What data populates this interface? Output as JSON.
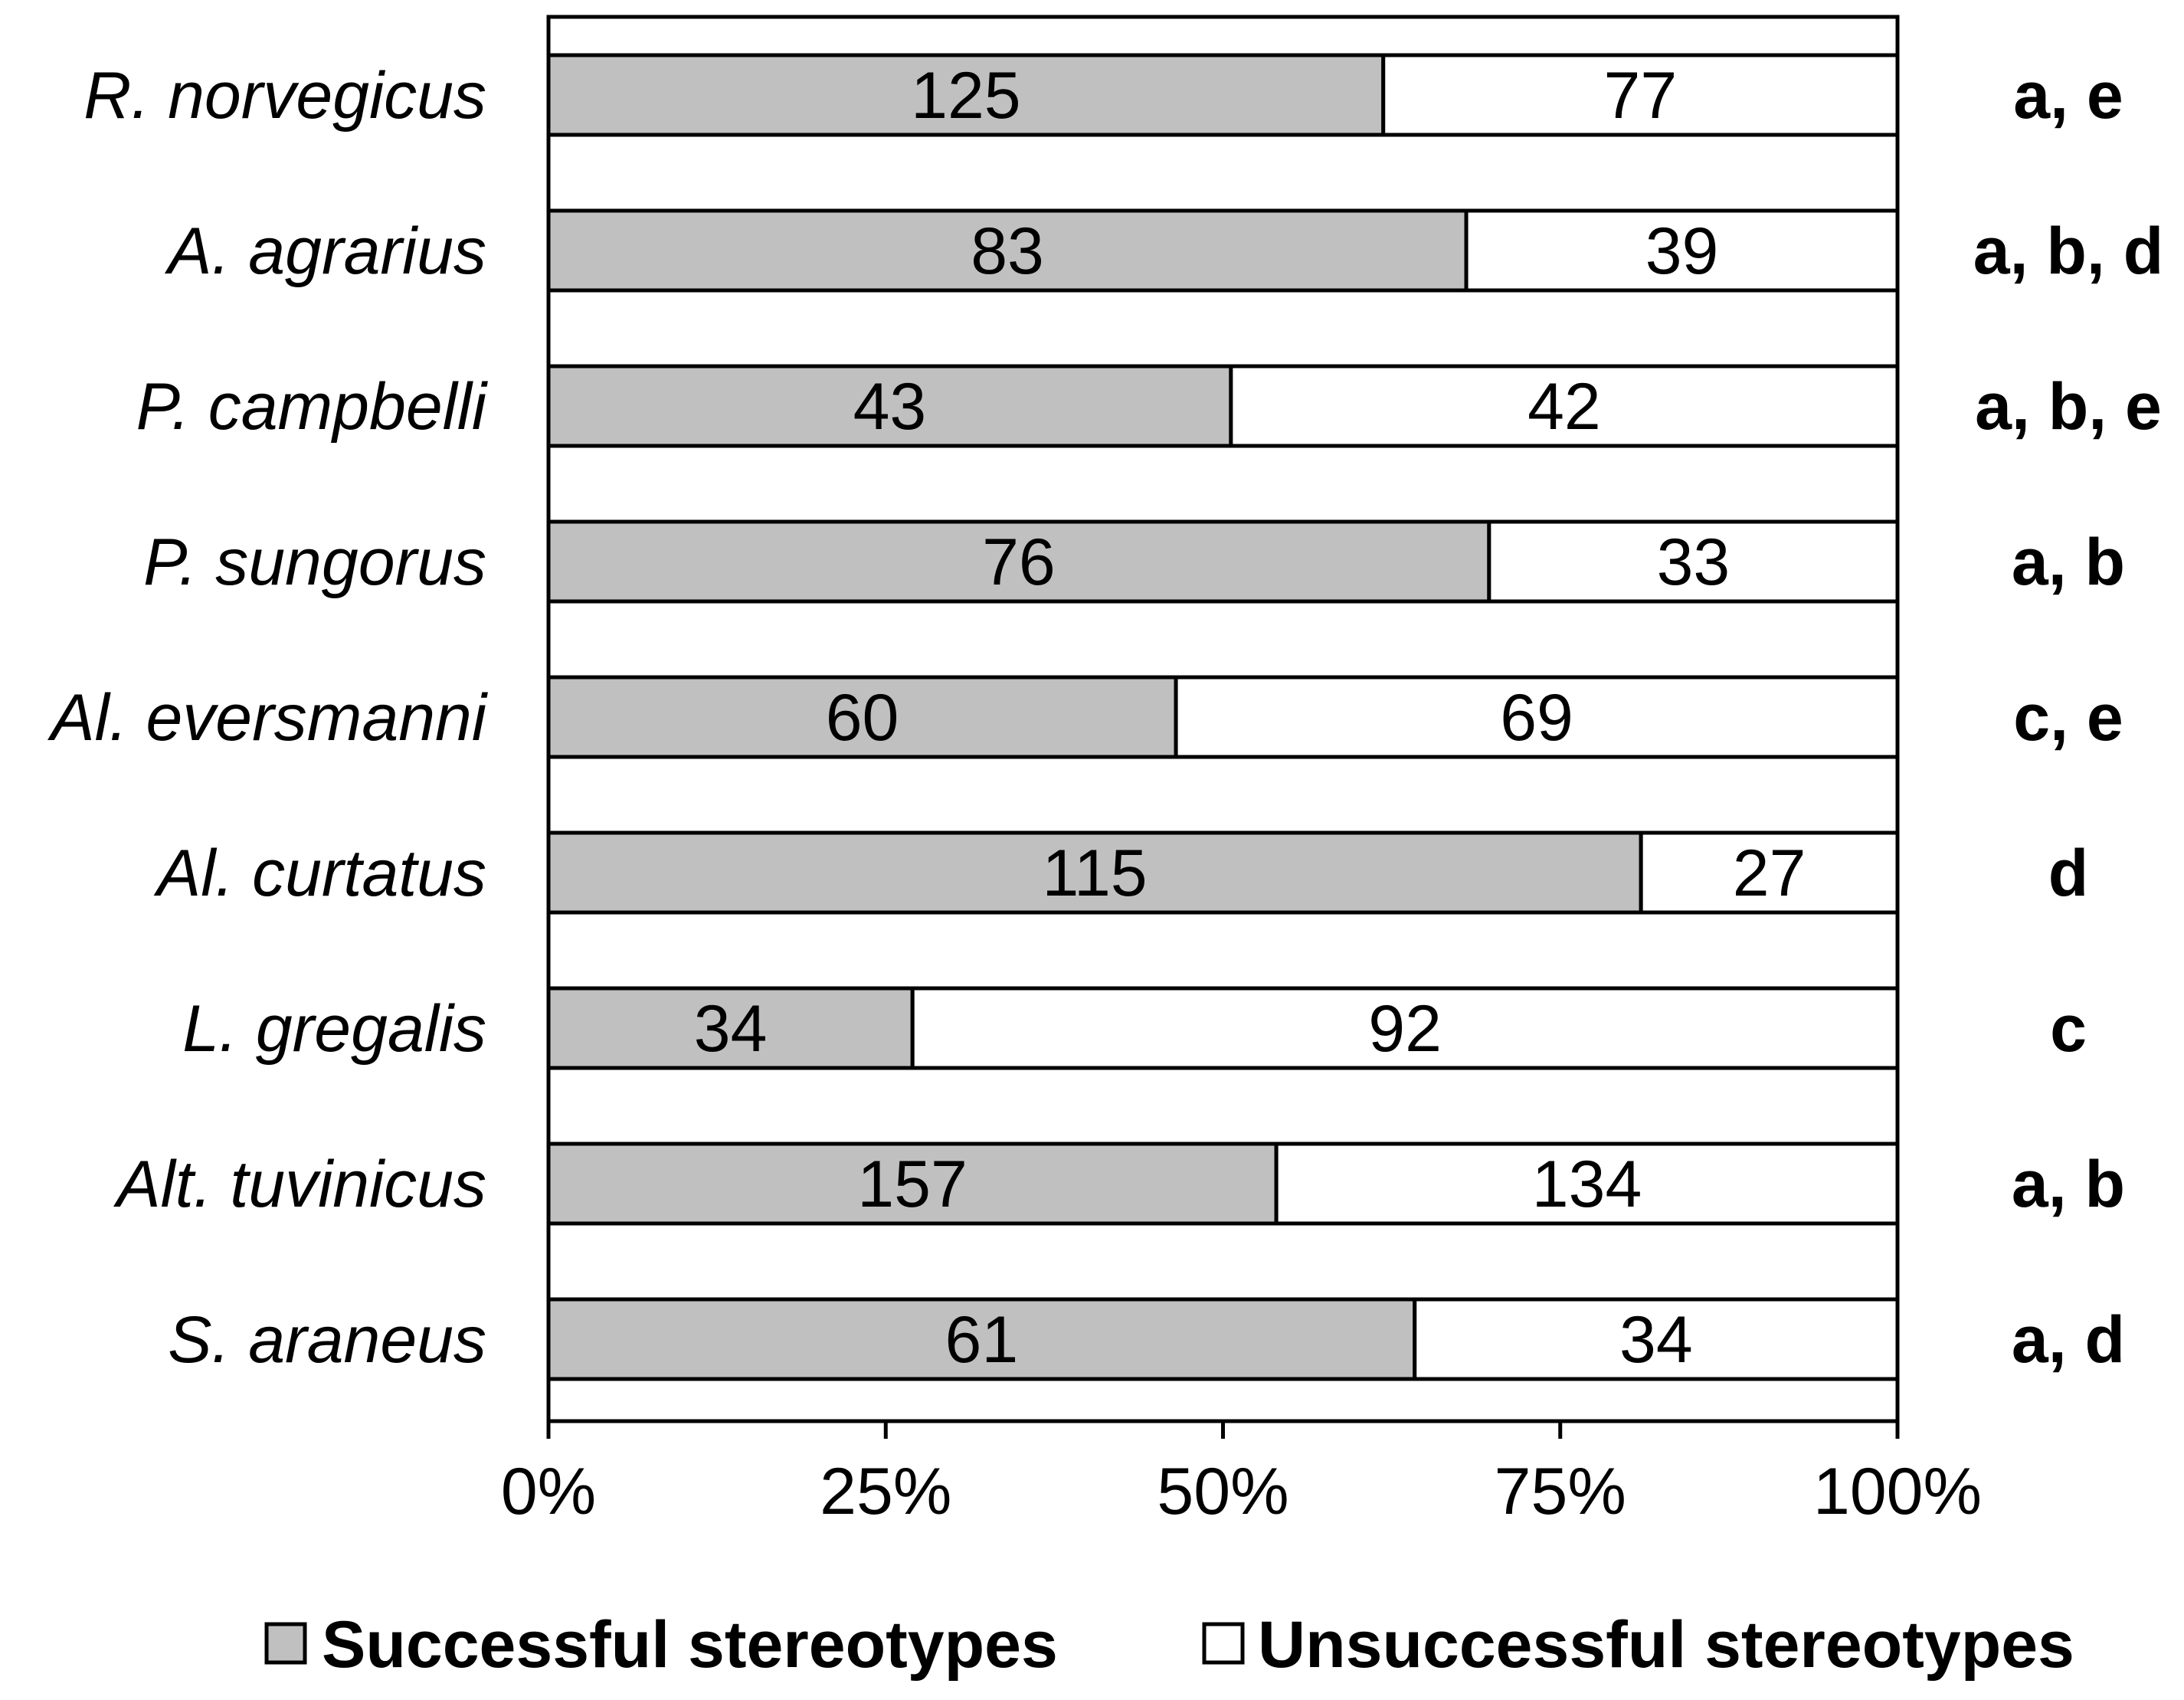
{
  "chart_data": {
    "type": "bar",
    "orientation": "horizontal",
    "stacking": "percent",
    "categories": [
      "R. norvegicus",
      "A. agrarius",
      "P. campbelli",
      "P. sungorus",
      "Al. eversmanni",
      "Al. curtatus",
      "L. gregalis",
      "Alt. tuvinicus",
      "S. araneus"
    ],
    "series": [
      {
        "name": "Successful stereotypes",
        "values": [
          125,
          83,
          43,
          76,
          60,
          115,
          34,
          157,
          61
        ],
        "color": "#c0c0c0"
      },
      {
        "name": "Unsuccessful stereotypes",
        "values": [
          77,
          39,
          42,
          33,
          69,
          27,
          92,
          134,
          34
        ],
        "color": "#ffffff"
      }
    ],
    "group_labels": [
      "a, e",
      "a, b, d",
      "a, b, e",
      "a, b",
      "c, e",
      "d",
      "c",
      "a, b",
      "a, d"
    ],
    "x_ticks": [
      "0%",
      "25%",
      "50%",
      "75%",
      "100%"
    ],
    "xlim": [
      0,
      100
    ],
    "legend_position": "bottom",
    "grid": false
  }
}
